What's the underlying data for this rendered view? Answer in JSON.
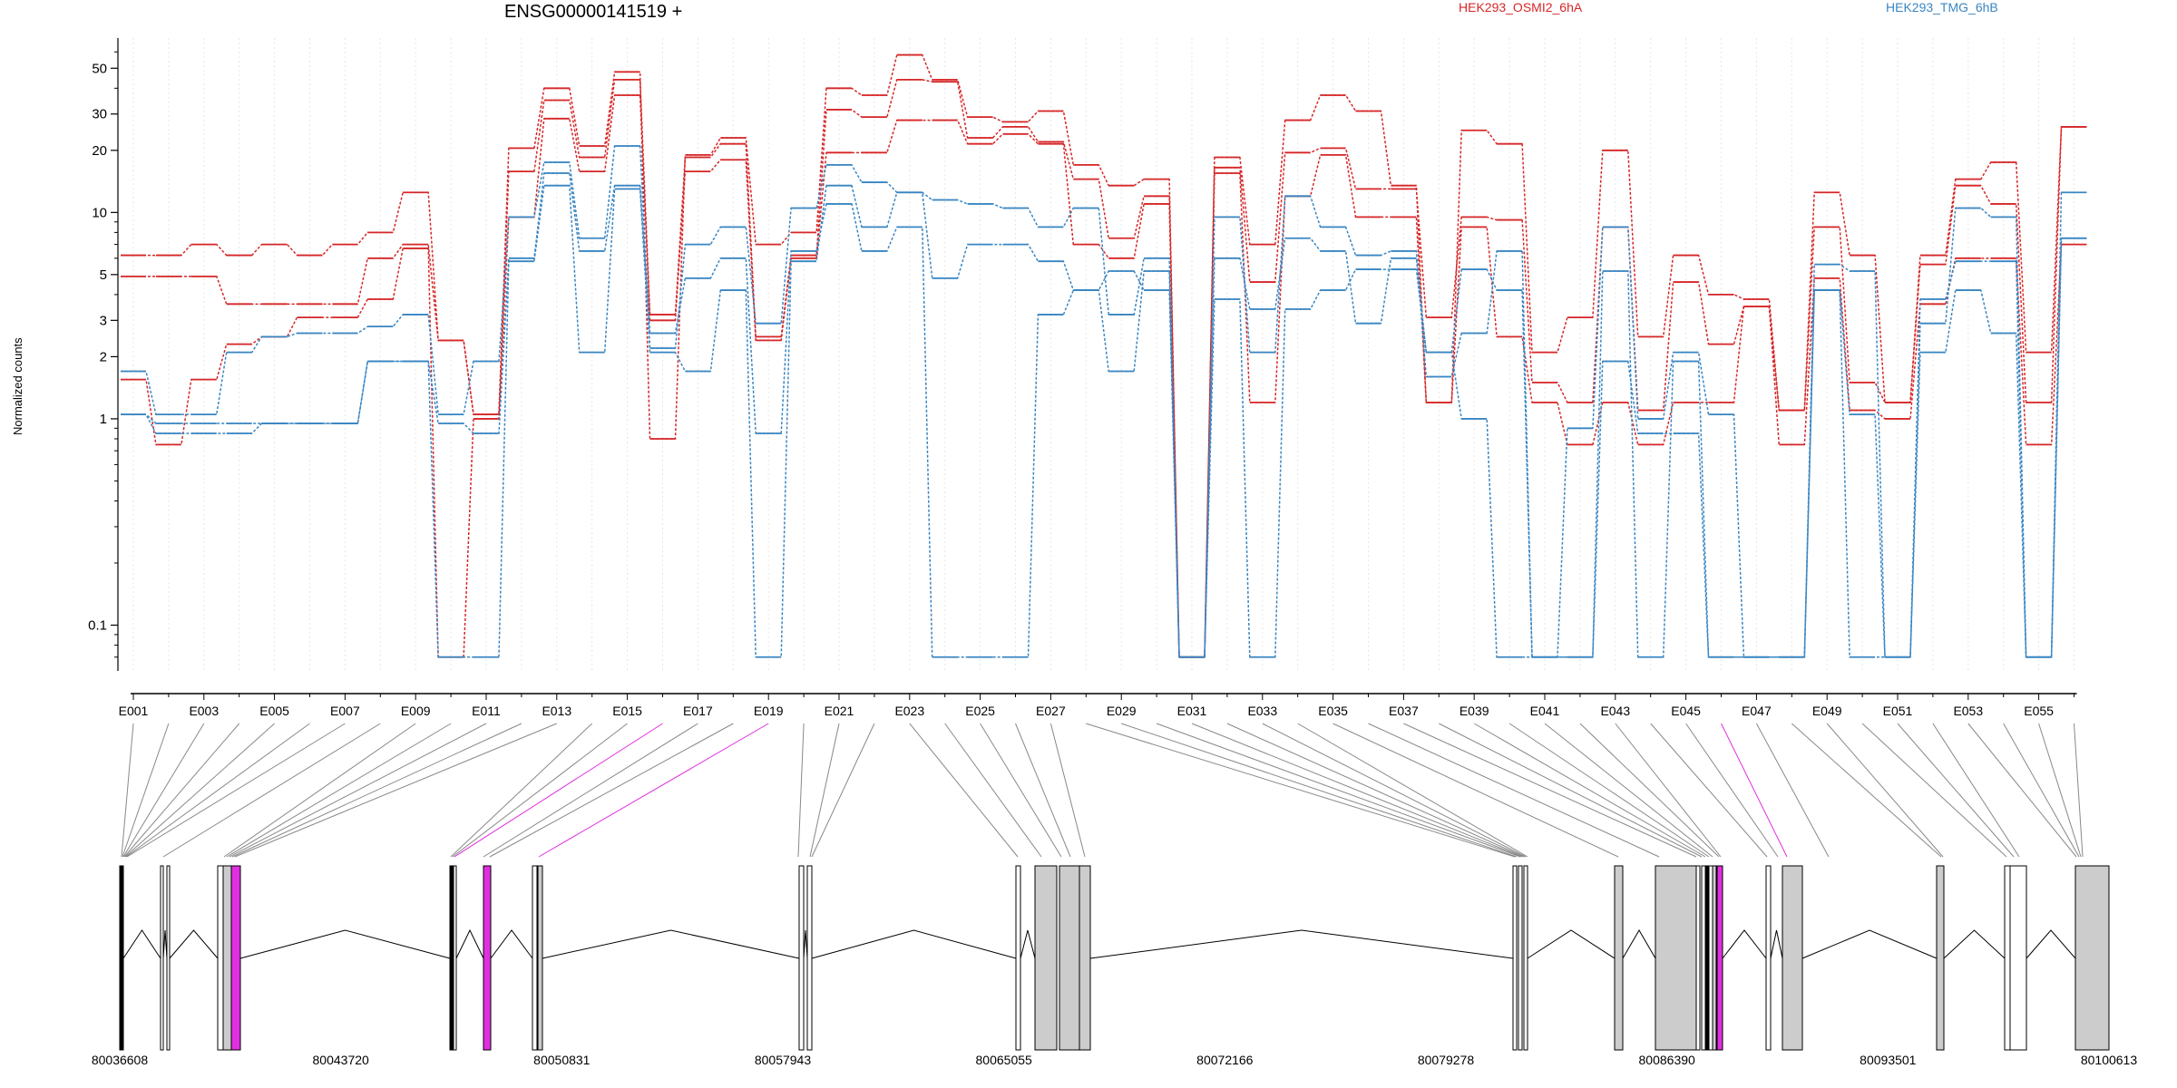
{
  "title": "ENSG00000141519 +",
  "legend": {
    "series_a_label": "HEK293_OSMI2_6hA",
    "series_b_label": "HEK293_TMG_6hB"
  },
  "colors": {
    "red": "#d62728",
    "blue": "#3a86c2",
    "highlight": "#e02fe0",
    "exon_fill": "#cccccc"
  },
  "chart_data": {
    "type": "line",
    "title": "ENSG00000141519 +",
    "ylabel": "Normalized counts",
    "yscale": "log",
    "ylim": [
      0.06,
      70
    ],
    "yticks": [
      0.1,
      1,
      2,
      3,
      5,
      10,
      20,
      30,
      50
    ],
    "ytick_labels": [
      "0.1",
      "1",
      "2",
      "3",
      "5",
      "10",
      "20",
      "30",
      "50"
    ],
    "exons": [
      "E001",
      "E002",
      "E003",
      "E004",
      "E005",
      "E006",
      "E007",
      "E008",
      "E009",
      "E010",
      "E011",
      "E012",
      "E013",
      "E014",
      "E015",
      "E016",
      "E017",
      "E018",
      "E019",
      "E020",
      "E021",
      "E022",
      "E023",
      "E024",
      "E025",
      "E026",
      "E027",
      "E028",
      "E029",
      "E030",
      "E031",
      "E032",
      "E033",
      "E034",
      "E035",
      "E036",
      "E037",
      "E038",
      "E039",
      "E040",
      "E041",
      "E042",
      "E043",
      "E044",
      "E045",
      "E046",
      "E047",
      "E048",
      "E049",
      "E050",
      "E051",
      "E052",
      "E053",
      "E054",
      "E055",
      "E056"
    ],
    "x_tick_labels": [
      "E001",
      "E003",
      "E005",
      "E007",
      "E009",
      "E011",
      "E013",
      "E015",
      "E017",
      "E019",
      "E021",
      "E023",
      "E025",
      "E027",
      "E029",
      "E031",
      "E033",
      "E035",
      "E037",
      "E039",
      "E041",
      "E043",
      "E045",
      "E047",
      "E049",
      "E051",
      "E053",
      "E055"
    ],
    "series": [
      {
        "group": "HEK293_OSMI2_6hA",
        "color": "red",
        "values": [
          6.2,
          6.2,
          7.0,
          6.2,
          7.0,
          6.2,
          7.0,
          8.0,
          12.5,
          2.4,
          1.05,
          20.5,
          40,
          21,
          48,
          0.8,
          19,
          23,
          7,
          8,
          40,
          37,
          58,
          44,
          29,
          27.5,
          31,
          17,
          13.5,
          14.5,
          0.07,
          18.5,
          7,
          28,
          37,
          31,
          13.5,
          1.2,
          25,
          21.5,
          2.1,
          3.1,
          20,
          2.5,
          6.2,
          4,
          3.8,
          1.1,
          12.5,
          6.2,
          1.2,
          6.2,
          14.5,
          17.5,
          2.1,
          26
        ]
      },
      {
        "group": "HEK293_OSMI2_6hA",
        "color": "red",
        "values": [
          4.9,
          4.9,
          4.9,
          3.6,
          3.6,
          3.6,
          3.6,
          6.0,
          7.0,
          2.4,
          1.05,
          15.8,
          35,
          18.5,
          44,
          3.2,
          18.5,
          21.5,
          2.5,
          6.2,
          31.5,
          29,
          44,
          43,
          23,
          26,
          22,
          14.5,
          7.5,
          12,
          0.07,
          16.5,
          4.6,
          19.5,
          20.5,
          13,
          13,
          3.1,
          9.5,
          9.2,
          1.5,
          1.2,
          8.5,
          1.1,
          4.6,
          2.3,
          3.5,
          1.1,
          8.5,
          1.5,
          1.2,
          5.6,
          13.5,
          11,
          1.2,
          26
        ]
      },
      {
        "group": "HEK293_OSMI2_6hA",
        "color": "red",
        "values": [
          1.55,
          0.75,
          1.55,
          2.3,
          2.5,
          3.1,
          3.1,
          3.8,
          6.7,
          0.07,
          1.0,
          9.5,
          28.5,
          15.8,
          37,
          3.0,
          15.8,
          18,
          2.4,
          6.0,
          19.5,
          19.5,
          28,
          28,
          21.5,
          24,
          21.5,
          7,
          6,
          11,
          0.07,
          15.5,
          1.2,
          12,
          19,
          9.5,
          9.5,
          1.2,
          8.5,
          2.5,
          1.2,
          0.75,
          1.2,
          0.75,
          1.2,
          1.2,
          3.5,
          0.75,
          4.8,
          1.1,
          1.0,
          3.6,
          6.0,
          6.0,
          0.75,
          7
        ]
      },
      {
        "group": "HEK293_TMG_6hB",
        "color": "blue",
        "values": [
          1.7,
          1.05,
          1.05,
          2.1,
          2.5,
          2.6,
          2.6,
          2.8,
          3.2,
          1.05,
          1.9,
          9.5,
          17.5,
          7.5,
          21,
          2.2,
          7,
          8.5,
          2.9,
          10.5,
          17,
          14,
          12.5,
          11.5,
          11,
          10.5,
          8.5,
          10.5,
          3.2,
          6,
          0.07,
          9.5,
          2.1,
          12,
          8.5,
          6.2,
          6.5,
          1.6,
          2.6,
          6.5,
          0.07,
          0.9,
          8.5,
          1.0,
          2.1,
          1.05,
          0.07,
          0.07,
          5.6,
          5.2,
          0.07,
          2.9,
          10.5,
          9.5,
          0.07,
          12.5
        ]
      },
      {
        "group": "HEK293_TMG_6hB",
        "color": "blue",
        "values": [
          1.05,
          0.85,
          0.85,
          0.85,
          0.95,
          0.95,
          0.95,
          1.9,
          1.9,
          0.95,
          0.85,
          6.0,
          15.5,
          6.5,
          13.5,
          2.6,
          4.8,
          6.0,
          0.85,
          6.5,
          11,
          6.5,
          8.5,
          0.07,
          0.07,
          0.07,
          3.2,
          4.2,
          1.7,
          5.2,
          0.07,
          6.0,
          3.4,
          7.5,
          6.5,
          2.9,
          6.0,
          2.1,
          5.3,
          4.2,
          0.07,
          0.07,
          1.9,
          0.85,
          0.85,
          0.07,
          0.07,
          0.07,
          4.2,
          1.05,
          0.07,
          2.1,
          4.2,
          2.6,
          0.07,
          7.5
        ]
      },
      {
        "group": "HEK293_TMG_6hB",
        "color": "blue",
        "values": [
          1.05,
          0.95,
          0.95,
          0.95,
          0.95,
          0.95,
          0.95,
          1.9,
          1.9,
          0.07,
          0.07,
          5.8,
          13.5,
          2.1,
          13,
          2.1,
          1.7,
          4.2,
          0.07,
          5.8,
          13.5,
          8.5,
          12.5,
          4.8,
          7,
          7,
          5.8,
          4.2,
          5.2,
          4.2,
          0.07,
          3.8,
          0.07,
          3.4,
          4.2,
          5.3,
          5.3,
          2.1,
          1.0,
          0.07,
          0.07,
          0.07,
          5.2,
          0.07,
          1.9,
          0.07,
          0.07,
          0.07,
          4.2,
          0.07,
          0.07,
          3.8,
          5.8,
          5.8,
          0.07,
          7.5
        ]
      }
    ],
    "genomic_axis": {
      "tick_labels": [
        "80036608",
        "80043720",
        "80050831",
        "80057943",
        "80065055",
        "80072166",
        "80079278",
        "80086390",
        "80093501",
        "80100613"
      ]
    },
    "highlighted_exons": [
      "E016",
      "E019",
      "E046"
    ]
  }
}
